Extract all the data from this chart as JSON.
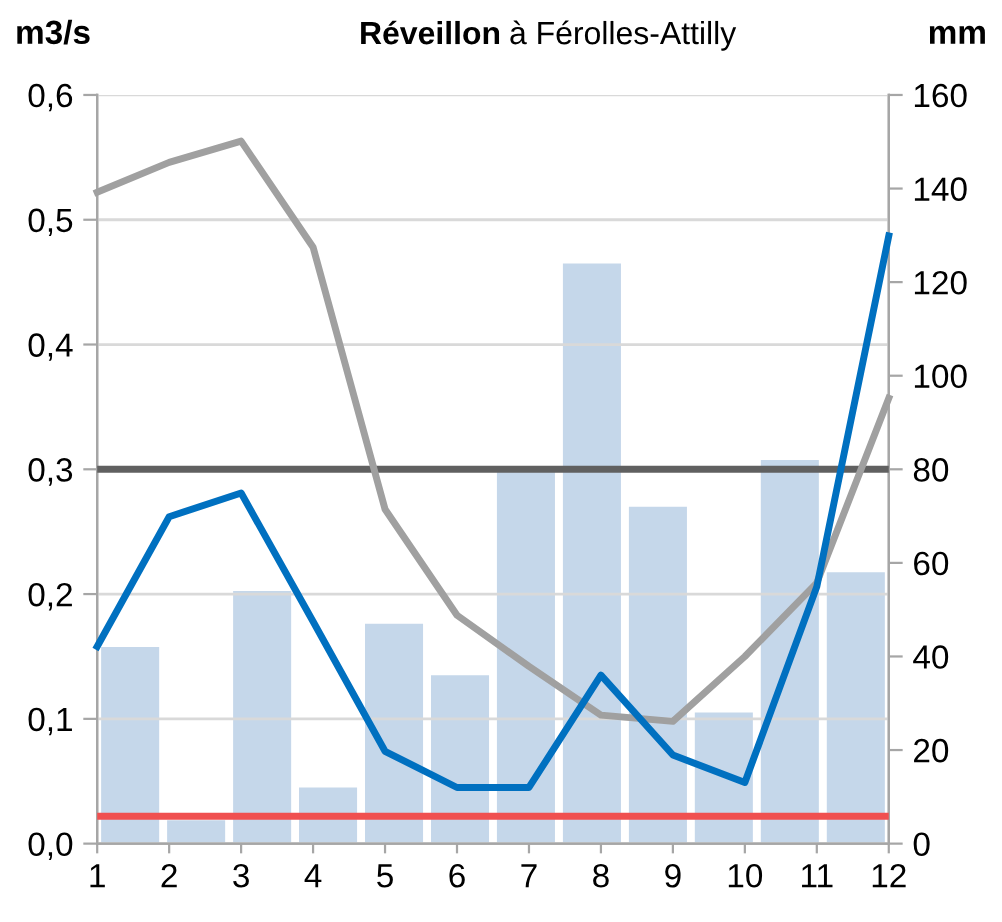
{
  "chart_data": {
    "type": "line",
    "title": "Réveillon à Férolles-Attilly",
    "ylabel": "m3/s",
    "y2label": "mm",
    "x": [
      1,
      2,
      3,
      4,
      5,
      6,
      7,
      8,
      9,
      10,
      11,
      12
    ],
    "xlim": [
      1,
      12
    ],
    "xticks": [
      1,
      2,
      3,
      4,
      5,
      6,
      7,
      8,
      9,
      10,
      11,
      12
    ],
    "ylim": [
      0,
      0.6
    ],
    "yticks": [
      {
        "value": 0,
        "label": "0,0"
      },
      {
        "value": 0.1,
        "label": "0,1"
      },
      {
        "value": 0.2,
        "label": "0,2"
      },
      {
        "value": 0.3,
        "label": "0,3"
      },
      {
        "value": 0.4,
        "label": "0,4"
      },
      {
        "value": 0.5,
        "label": "0,5"
      },
      {
        "value": 0.6,
        "label": "0,6"
      }
    ],
    "y2lim": [
      0,
      160
    ],
    "y2ticks": [
      0,
      20,
      40,
      60,
      80,
      100,
      120,
      140,
      160
    ],
    "grid": "y",
    "marker": "none",
    "line_style": "solid",
    "series": [
      {
        "type": "bar",
        "axis": "y2",
        "color": "#c5d7ea",
        "x": [
          1.458,
          2.375,
          3.292,
          4.208,
          5.125,
          6.042,
          6.958,
          7.875,
          8.792,
          9.708,
          10.625,
          11.542
        ],
        "values": [
          42,
          5,
          54,
          12,
          47,
          36,
          80,
          124,
          72,
          28,
          82,
          58
        ]
      },
      {
        "color": "#a0a0a0",
        "values": [
          0.522,
          0.546,
          0.563,
          0.478,
          0.268,
          0.183,
          0.142,
          0.103,
          0.098,
          0.15,
          0.209,
          0.357
        ]
      },
      {
        "color": "#0070c0",
        "values": [
          0.158,
          0.262,
          0.281,
          0.178,
          0.074,
          0.045,
          0.045,
          0.135,
          0.071,
          0.049,
          0.206,
          0.487
        ]
      }
    ],
    "ref_lines": [
      {
        "axis": "y",
        "value": 0.3,
        "color": "#606060"
      },
      {
        "axis": "y",
        "value": 0.022,
        "color": "#f05050"
      }
    ]
  }
}
